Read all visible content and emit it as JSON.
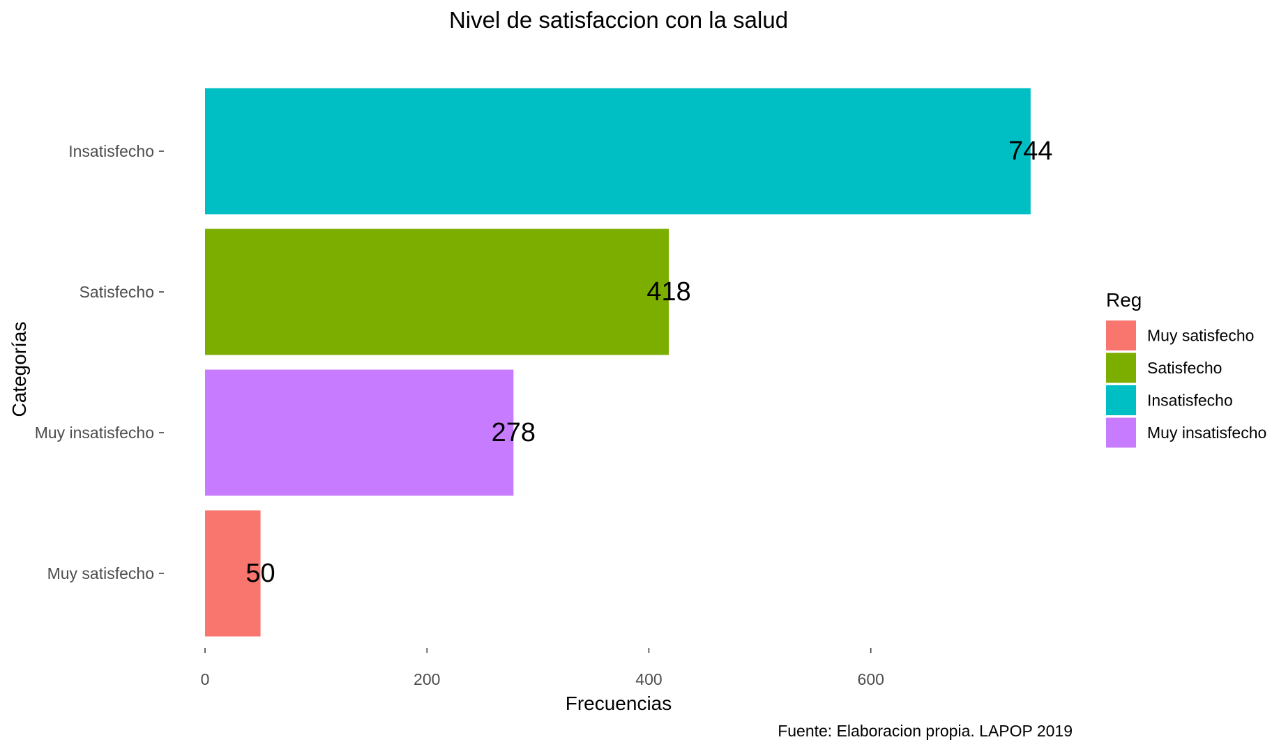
{
  "chart_data": {
    "type": "bar",
    "orientation": "horizontal",
    "title": "Nivel de satisfaccion con la salud",
    "xlabel": "Frecuencias",
    "ylabel": "Categorías",
    "caption": "Fuente: Elaboracion propia. LAPOP 2019",
    "categories": [
      "Muy satisfecho",
      "Muy insatisfecho",
      "Satisfecho",
      "Insatisfecho"
    ],
    "values": [
      50,
      278,
      418,
      744
    ],
    "colors": [
      "#F8766D",
      "#C77CFF",
      "#7CAE00",
      "#00BFC4"
    ],
    "xlim": [
      0,
      744
    ],
    "x_ticks": [
      0,
      200,
      400,
      600
    ],
    "grid": false,
    "legend": {
      "title": "Reg",
      "position": "right",
      "entries": [
        {
          "label": "Muy satisfecho",
          "color": "#F8766D"
        },
        {
          "label": "Satisfecho",
          "color": "#7CAE00"
        },
        {
          "label": "Insatisfecho",
          "color": "#00BFC4"
        },
        {
          "label": "Muy insatisfecho",
          "color": "#C77CFF"
        }
      ]
    }
  }
}
